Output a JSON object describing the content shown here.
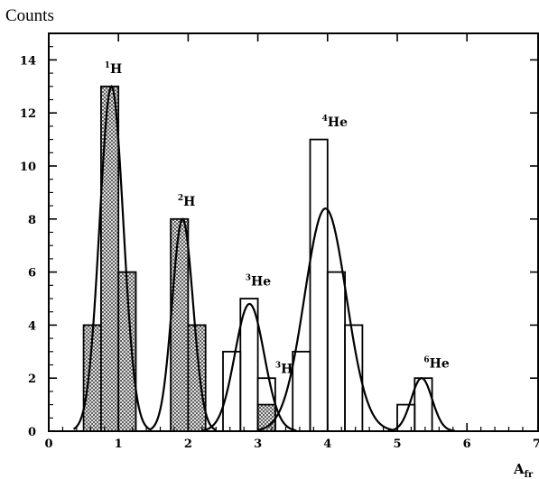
{
  "chart_data": {
    "type": "bar",
    "ylabel": "Counts",
    "xlabel": "A",
    "xlabel_subscript": "fr",
    "xlim": [
      0,
      7
    ],
    "ylim": [
      0,
      15
    ],
    "xticks": [
      0,
      1,
      2,
      3,
      4,
      5,
      6,
      7
    ],
    "yticks": [
      0,
      2,
      4,
      6,
      8,
      10,
      12,
      14
    ],
    "bin_width": 0.25,
    "series": [
      {
        "fill": "crosshatch",
        "bins": [
          {
            "x": 0.5,
            "y": 4
          },
          {
            "x": 0.75,
            "y": 13
          },
          {
            "x": 1.0,
            "y": 6
          },
          {
            "x": 1.75,
            "y": 8
          },
          {
            "x": 2.0,
            "y": 4
          },
          {
            "x": 3.0,
            "y": 1
          }
        ]
      },
      {
        "fill": "none",
        "bins": [
          {
            "x": 2.5,
            "y": 3
          },
          {
            "x": 2.75,
            "y": 5
          },
          {
            "x": 3.0,
            "y": 2
          },
          {
            "x": 3.5,
            "y": 3
          },
          {
            "x": 3.75,
            "y": 11
          },
          {
            "x": 4.0,
            "y": 6
          },
          {
            "x": 4.25,
            "y": 4
          },
          {
            "x": 5.0,
            "y": 1
          },
          {
            "x": 5.25,
            "y": 2
          }
        ]
      }
    ],
    "fits": [
      {
        "mean": 0.9,
        "sigma": 0.17,
        "amp": 13.0
      },
      {
        "mean": 1.92,
        "sigma": 0.15,
        "amp": 8.0
      },
      {
        "mean": 2.88,
        "sigma": 0.21,
        "amp": 4.8
      },
      {
        "mean": 3.97,
        "sigma": 0.3,
        "amp": 8.4
      },
      {
        "mean": 5.35,
        "sigma": 0.15,
        "amp": 2.0
      }
    ],
    "annotations": [
      {
        "x": 0.8,
        "y": 13.5,
        "sup": "1",
        "text": "H"
      },
      {
        "x": 1.85,
        "y": 8.5,
        "sup": "2",
        "text": "H"
      },
      {
        "x": 2.82,
        "y": 5.5,
        "sup": "3",
        "text": "He"
      },
      {
        "x": 3.25,
        "y": 2.2,
        "sup": "3",
        "text": "H"
      },
      {
        "x": 3.92,
        "y": 11.5,
        "sup": "4",
        "text": "He"
      },
      {
        "x": 5.38,
        "y": 2.4,
        "sup": "6",
        "text": "He"
      }
    ]
  }
}
